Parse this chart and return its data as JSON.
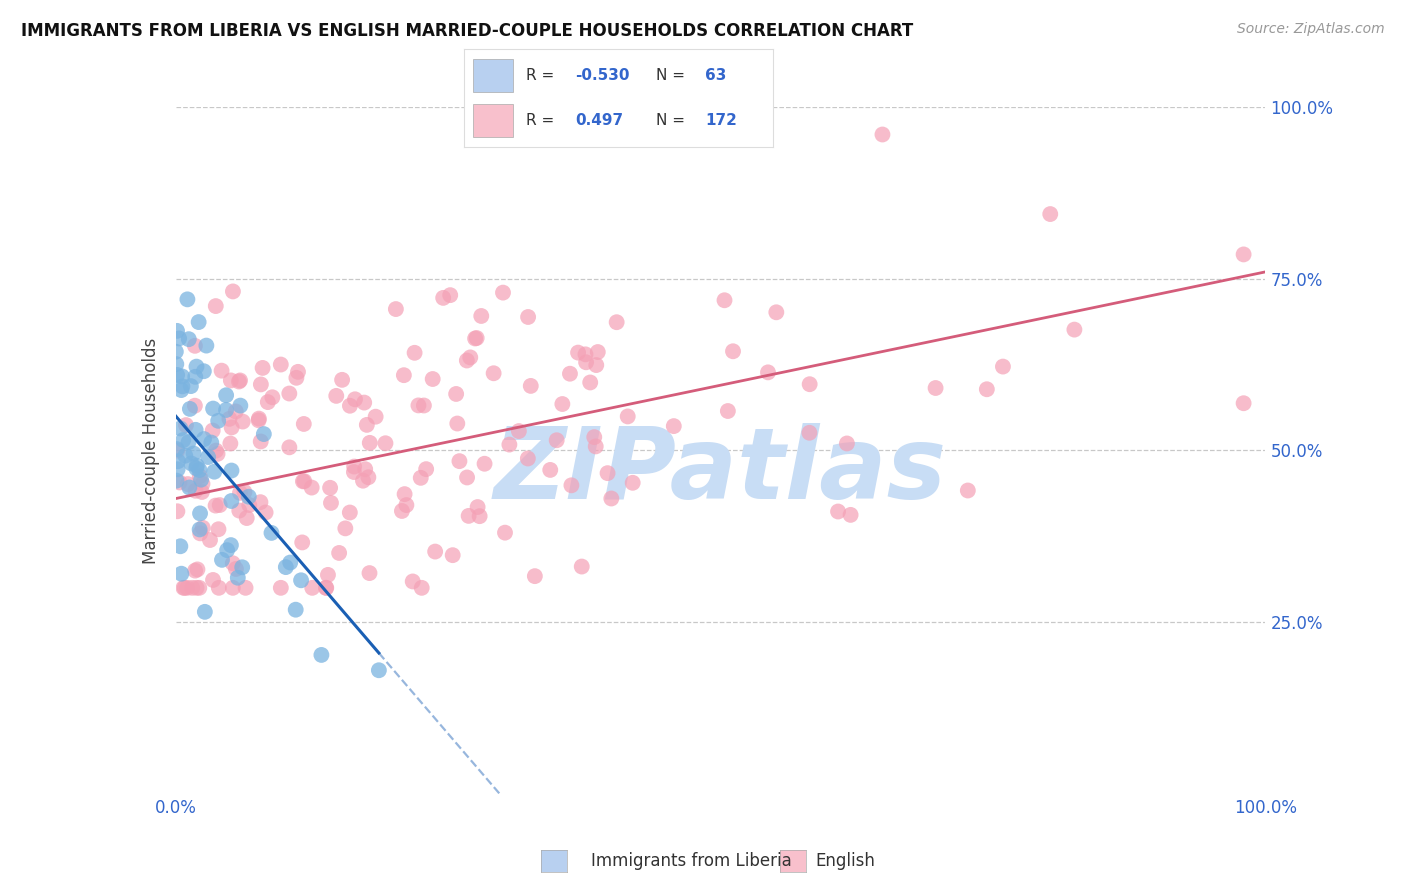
{
  "title": "IMMIGRANTS FROM LIBERIA VS ENGLISH MARRIED-COUPLE HOUSEHOLDS CORRELATION CHART",
  "source": "Source: ZipAtlas.com",
  "xlabel_blue": "Immigrants from Liberia",
  "xlabel_pink": "English",
  "ylabel": "Married-couple Households",
  "xlim": [
    0,
    100
  ],
  "ylim": [
    0,
    100
  ],
  "blue_R": -0.53,
  "blue_N": 63,
  "pink_R": 0.497,
  "pink_N": 172,
  "blue_dot_color": "#7ab3e0",
  "pink_dot_color": "#f4a0b5",
  "blue_line_color": "#1a5fb4",
  "pink_line_color": "#d45c7a",
  "background_color": "#ffffff",
  "grid_color": "#c8c8c8",
  "legend_blue_fill": "#b8d0f0",
  "legend_pink_fill": "#f8c0cc",
  "legend_text_color": "#3366cc",
  "watermark_text": "ZIPatlas",
  "watermark_color": "#c8ddf5",
  "blue_line_intercept": 55.0,
  "blue_line_slope": -1.85,
  "pink_line_intercept": 43.0,
  "pink_line_slope": 0.33
}
